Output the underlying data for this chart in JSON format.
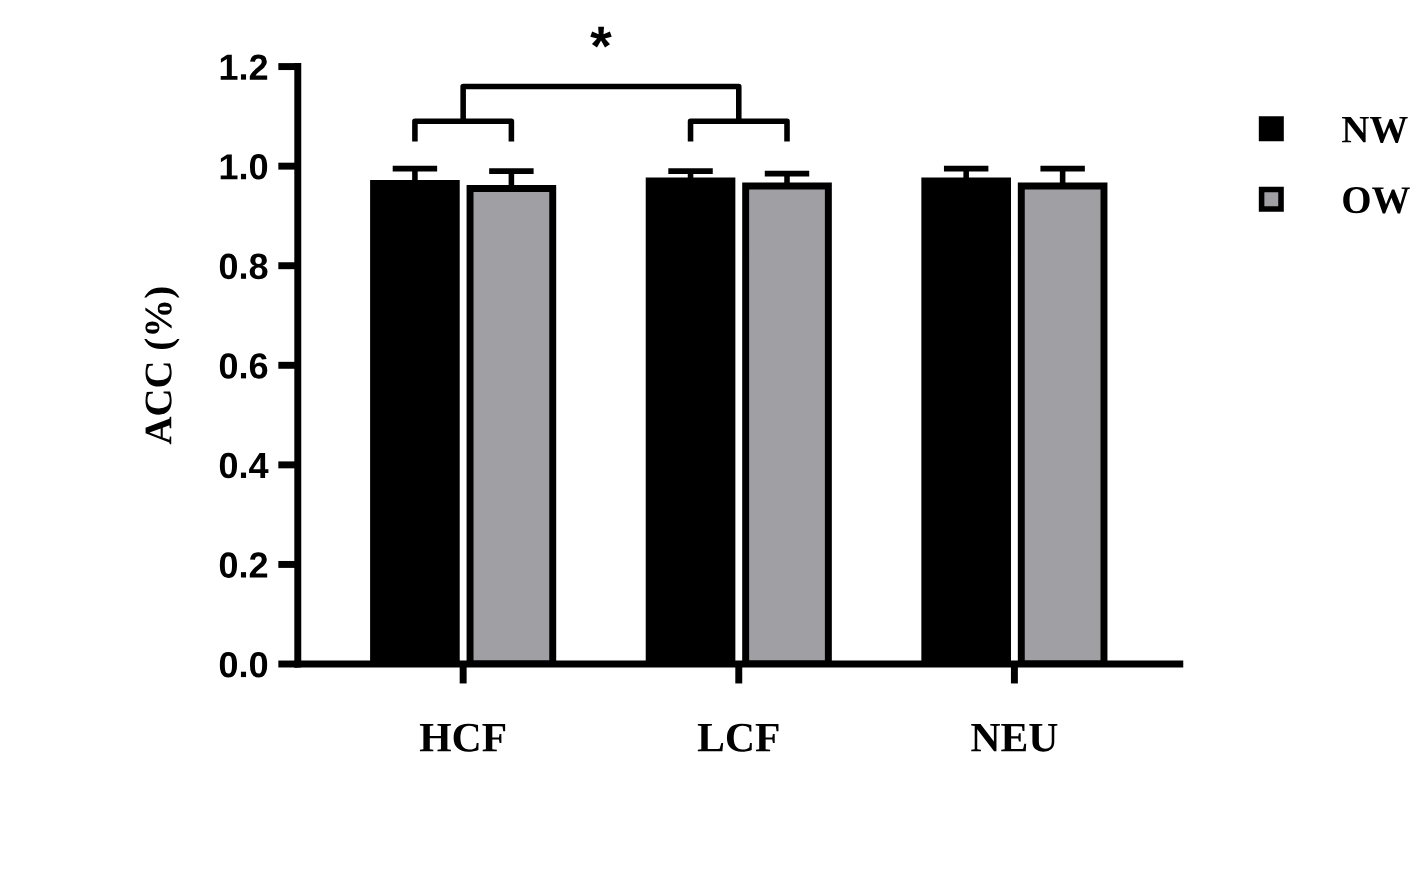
{
  "chart_data": {
    "type": "bar",
    "ylabel": "ACC (%)",
    "categories": [
      "HCF",
      "LCF",
      "NEU"
    ],
    "series": [
      {
        "name": "NW",
        "color": "#000000",
        "values": [
          0.965,
          0.97,
          0.97
        ],
        "errors": [
          0.03,
          0.02,
          0.025
        ]
      },
      {
        "name": "OW",
        "color": "#a09fa4",
        "values": [
          0.955,
          0.96,
          0.96
        ],
        "errors": [
          0.035,
          0.025,
          0.035
        ]
      }
    ],
    "ylim": [
      0,
      1.2
    ],
    "yticks": [
      {
        "value": 0,
        "label": "0.0"
      },
      0.2,
      0.4,
      0.6,
      0.8,
      {
        "value": 1,
        "label": "1.0"
      },
      1.2
    ],
    "grid": false,
    "legend": "right",
    "annotations": [
      "*"
    ]
  }
}
